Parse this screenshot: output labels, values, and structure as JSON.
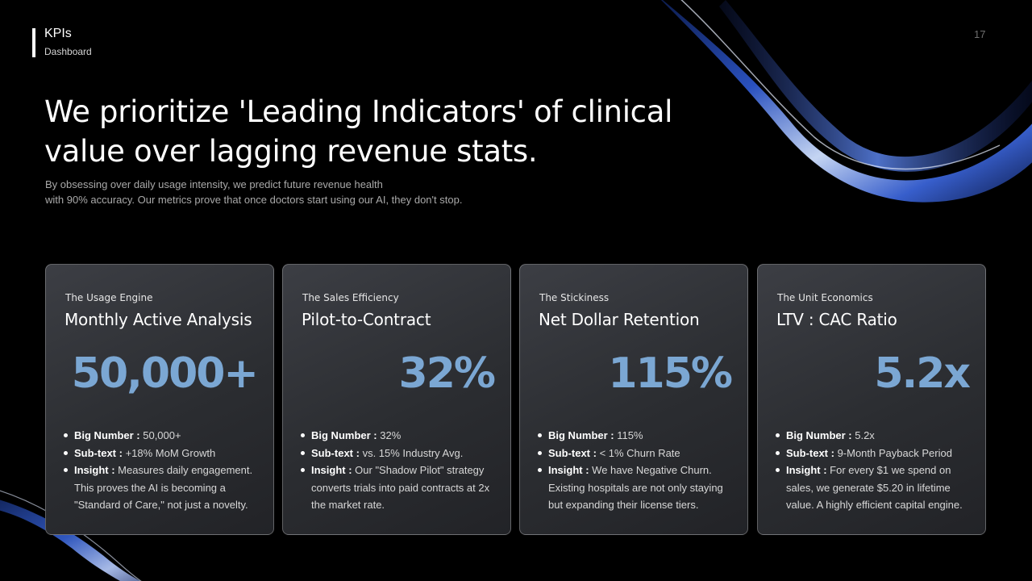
{
  "header": {
    "section_title": "KPIs",
    "section_subtitle": "Dashboard",
    "page_number": "17"
  },
  "headline": {
    "line1": "We prioritize 'Leading Indicators' of clinical",
    "line2": "value over lagging revenue stats."
  },
  "lede": {
    "line1": "By obsessing over daily usage intensity, we predict future revenue health",
    "line2": "with 90% accuracy. Our metrics prove that once doctors start using our AI, they don't stop."
  },
  "colors": {
    "background": "#000000",
    "accent_number": "#7ba7d3",
    "card_fill": "#2f3136",
    "ribbon_blue": "#2f56c9"
  },
  "cards": [
    {
      "eyebrow": "The Usage Engine",
      "title": "Monthly Active Analysis",
      "big_number": "50,000+",
      "bullets": [
        {
          "label": "Big Number :",
          "text": " 50,000+"
        },
        {
          "label": "Sub-text :",
          "text": " +18% MoM Growth"
        },
        {
          "label": "Insight :",
          "text": " Measures daily engagement. This proves the AI is becoming a \"Standard of Care,\" not just a novelty."
        }
      ]
    },
    {
      "eyebrow": "The Sales Efficiency",
      "title": "Pilot-to-Contract",
      "big_number": "32%",
      "bullets": [
        {
          "label": "Big Number :",
          "text": " 32%"
        },
        {
          "label": "Sub-text :",
          "text": " vs. 15% Industry Avg."
        },
        {
          "label": "Insight :",
          "text": " Our \"Shadow Pilot\" strategy converts trials into paid contracts at 2x the market rate."
        }
      ]
    },
    {
      "eyebrow": "The Stickiness",
      "title": "Net Dollar Retention",
      "big_number": "115%",
      "bullets": [
        {
          "label": "Big Number :",
          "text": " 115%"
        },
        {
          "label": "Sub-text :",
          "text": " < 1% Churn Rate"
        },
        {
          "label": "Insight :",
          "text": " We have Negative Churn. Existing hospitals are not only staying but expanding their license tiers."
        }
      ]
    },
    {
      "eyebrow": "The Unit Economics",
      "title": "LTV : CAC Ratio",
      "big_number": "5.2x",
      "bullets": [
        {
          "label": "Big Number :",
          "text": " 5.2x"
        },
        {
          "label": "Sub-text :",
          "text": " 9-Month Payback Period"
        },
        {
          "label": "Insight :",
          "text": " For every $1 we spend on sales, we generate $5.20 in lifetime value. A highly efficient capital engine."
        }
      ]
    }
  ]
}
